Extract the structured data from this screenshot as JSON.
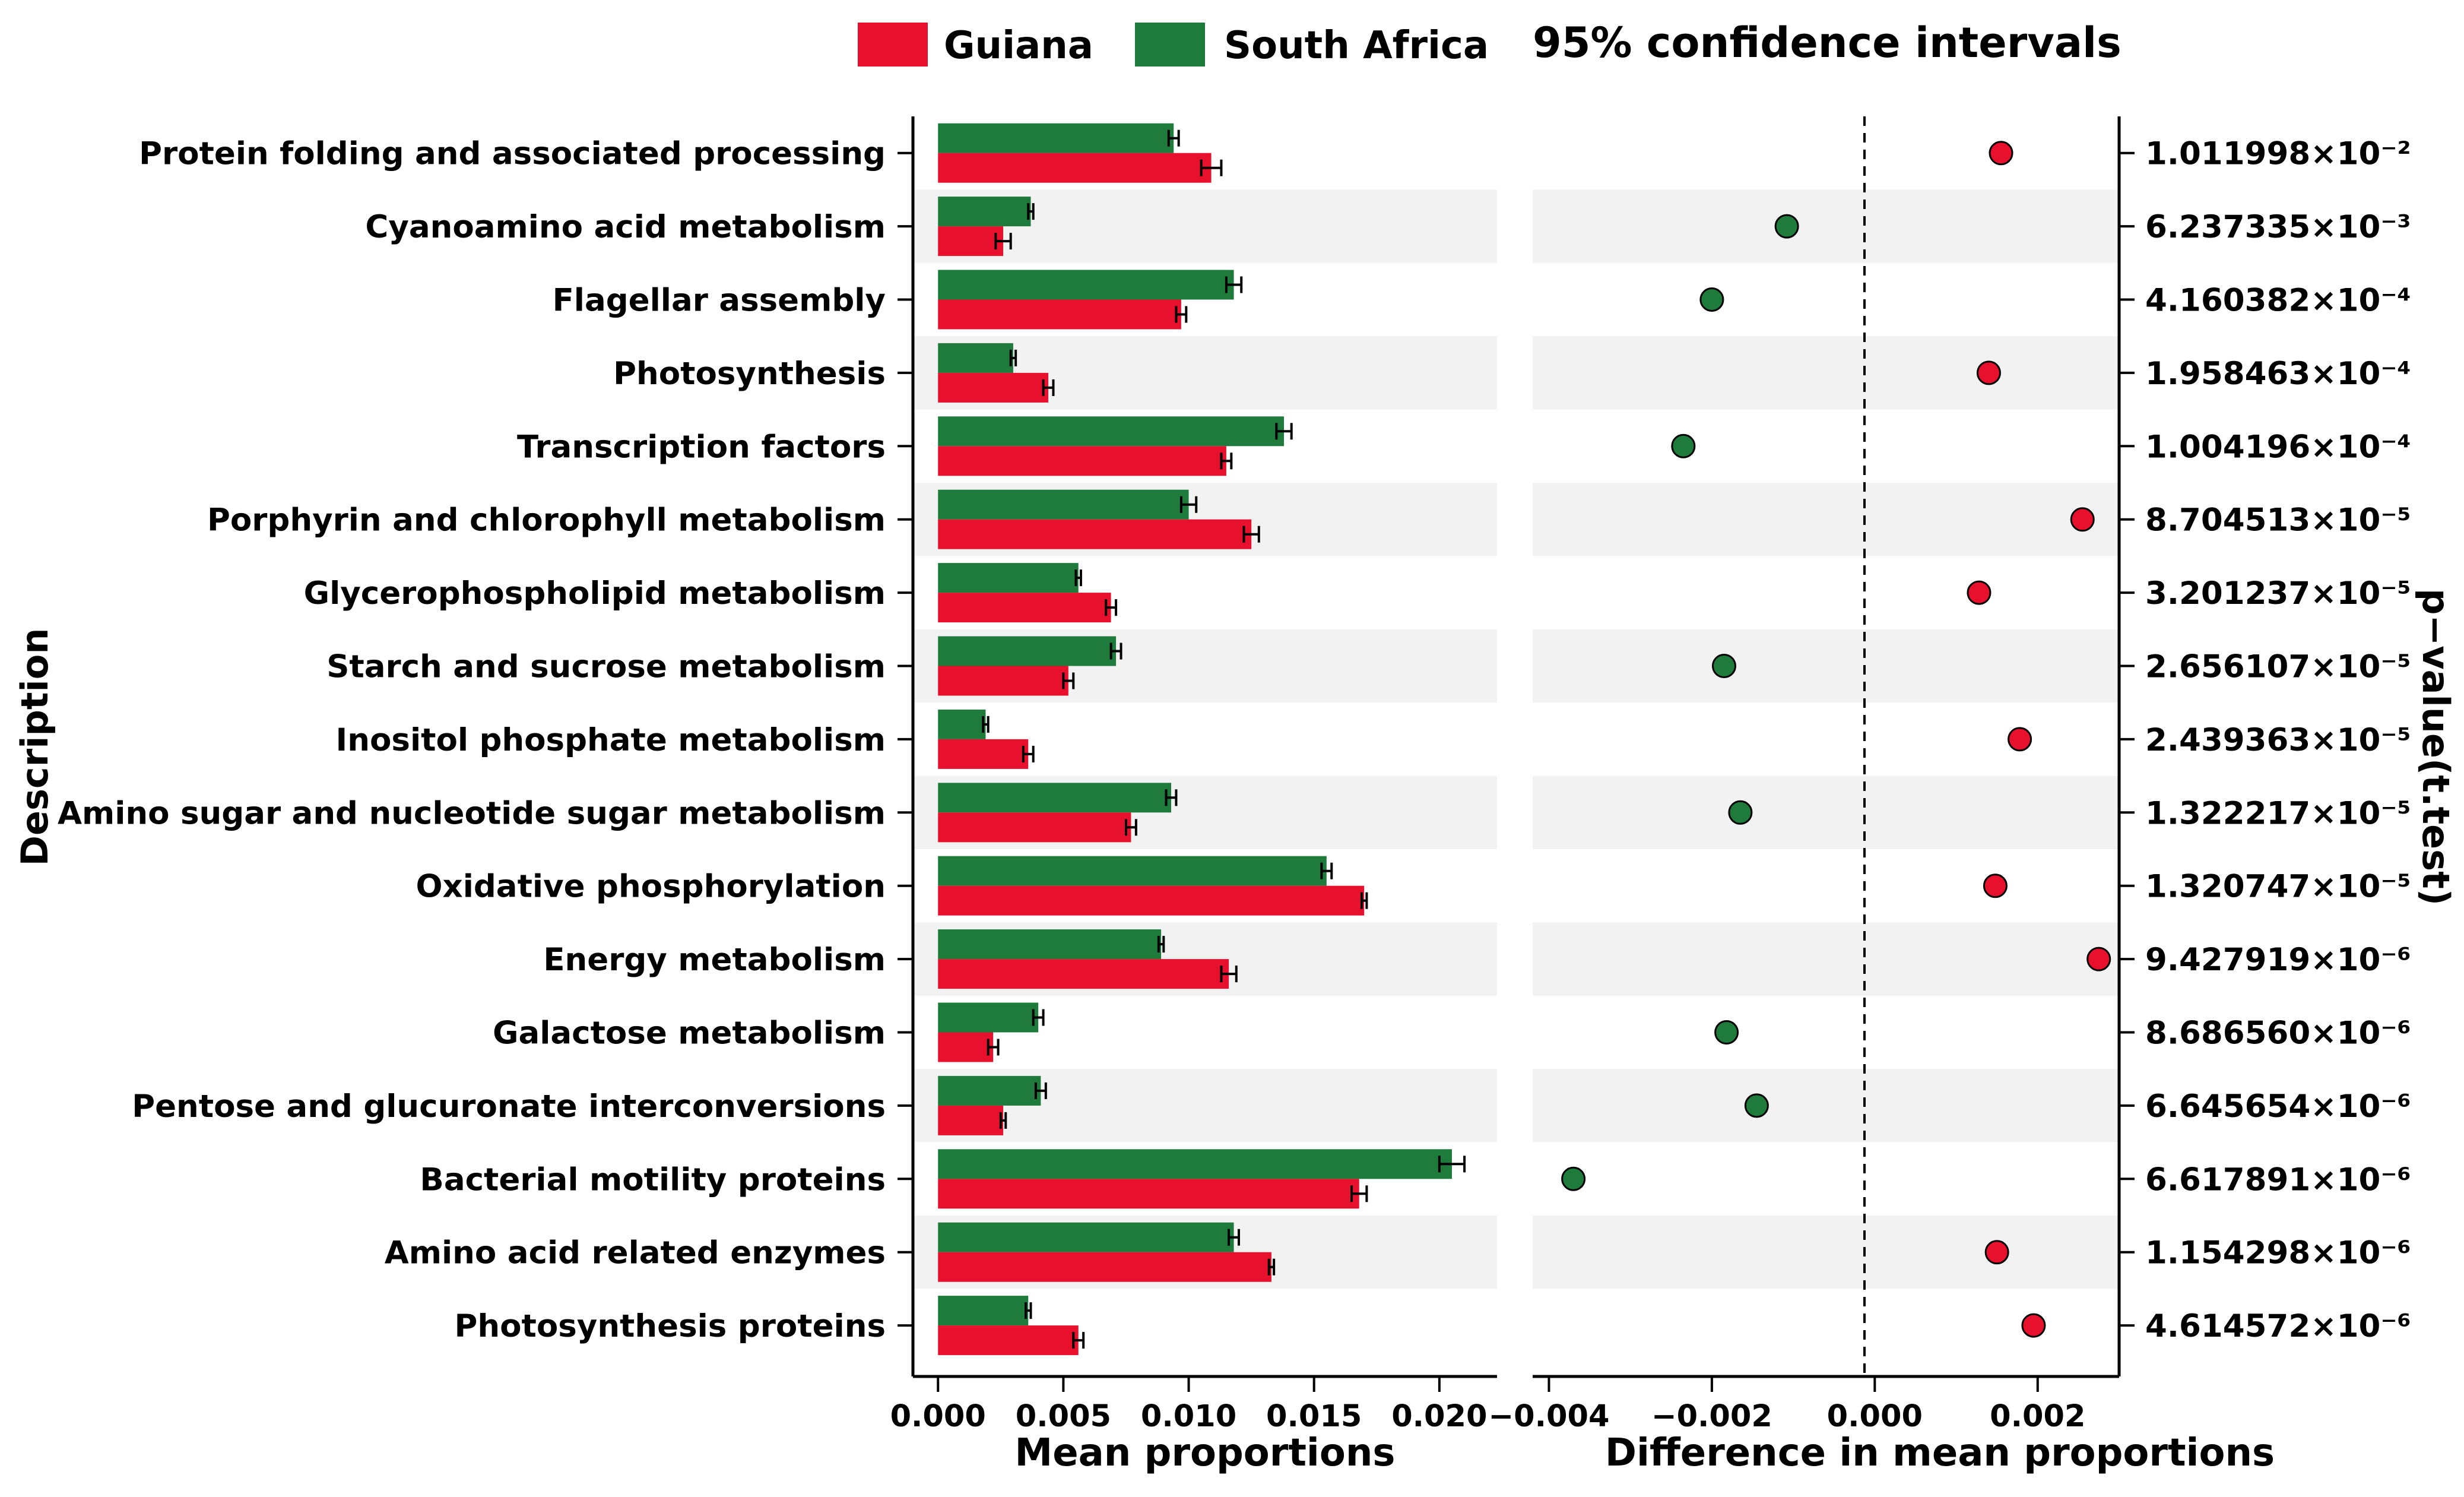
{
  "chart_data": {
    "type": "bar",
    "subtype": "extended-error-bar",
    "legend": {
      "entries": [
        {
          "name": "Guiana",
          "color": "#e8112d"
        },
        {
          "name": "South Africa",
          "color": "#1e7b3b"
        }
      ],
      "title": "95% confidence intervals",
      "placement": "top"
    },
    "colors": {
      "guiana": "#e8112d",
      "south_africa": "#1e7b3b",
      "stripe": "#f2f2f2"
    },
    "ylabel": "Description",
    "right_label": "p−value(t.test)",
    "categories": [
      "Protein folding and associated processing",
      "Cyanoamino acid metabolism",
      "Flagellar assembly",
      "Photosynthesis",
      "Transcription factors",
      "Porphyrin and chlorophyll metabolism",
      "Glycerophospholipid metabolism",
      "Starch and sucrose metabolism",
      "Inositol phosphate metabolism",
      "Amino sugar and nucleotide sugar metabolism",
      "Oxidative phosphorylation",
      "Energy metabolism",
      "Galactose metabolism",
      "Pentose and glucuronate interconversions",
      "Bacterial motility proteins",
      "Amino acid related enzymes",
      "Photosynthesis proteins"
    ],
    "mean_proportions": {
      "xlabel": "Mean proportions",
      "xlim": [
        -0.001,
        0.0223
      ],
      "ticks": [
        0.0,
        0.005,
        0.01,
        0.015,
        0.02
      ],
      "tick_labels": [
        "0.000",
        "0.005",
        "0.010",
        "0.015",
        "0.020"
      ],
      "series": [
        {
          "name": "South Africa",
          "values": [
            0.0094,
            0.0037,
            0.0118,
            0.003,
            0.0138,
            0.01,
            0.0056,
            0.0071,
            0.0019,
            0.0093,
            0.0155,
            0.0089,
            0.004,
            0.0041,
            0.0205,
            0.0118,
            0.0036
          ],
          "errors": [
            0.0002,
            0.0001,
            0.0003,
            0.0001,
            0.0003,
            0.0003,
            0.0001,
            0.0002,
            0.0001,
            0.0002,
            0.0002,
            0.0001,
            0.0002,
            0.0002,
            0.0005,
            0.0002,
            0.0001
          ]
        },
        {
          "name": "Guiana",
          "values": [
            0.0109,
            0.0026,
            0.0097,
            0.0044,
            0.0115,
            0.0125,
            0.0069,
            0.0052,
            0.0036,
            0.0077,
            0.017,
            0.0116,
            0.0022,
            0.0026,
            0.0168,
            0.0133,
            0.0056
          ],
          "errors": [
            0.0004,
            0.0003,
            0.0002,
            0.0002,
            0.0002,
            0.0003,
            0.0002,
            0.0002,
            0.0002,
            0.0002,
            0.0001,
            0.0003,
            0.0002,
            0.0001,
            0.0003,
            0.0001,
            0.0002
          ]
        }
      ]
    },
    "difference": {
      "xlabel": "Difference in mean proportions",
      "xlim": [
        -0.0042,
        0.003
      ],
      "ticks": [
        -0.004,
        -0.002,
        0.0,
        0.002
      ],
      "tick_labels": [
        "−0.004",
        "−0.002",
        "0.000",
        "0.002"
      ],
      "values": [
        0.00155,
        -0.00108,
        -0.002,
        0.0014,
        -0.00235,
        0.00255,
        0.00128,
        -0.00185,
        0.00178,
        -0.00165,
        0.00148,
        0.00275,
        -0.00182,
        -0.00145,
        -0.0037,
        0.0015,
        0.00195
      ],
      "enriched_in": [
        "Guiana",
        "South Africa",
        "South Africa",
        "Guiana",
        "South Africa",
        "Guiana",
        "Guiana",
        "South Africa",
        "Guiana",
        "South Africa",
        "Guiana",
        "Guiana",
        "South Africa",
        "South Africa",
        "South Africa",
        "Guiana",
        "Guiana"
      ]
    },
    "p_values": [
      "1.011998×10⁻²",
      "6.237335×10⁻³",
      "4.160382×10⁻⁴",
      "1.958463×10⁻⁴",
      "1.004196×10⁻⁴",
      "8.704513×10⁻⁵",
      "3.201237×10⁻⁵",
      "2.656107×10⁻⁵",
      "2.439363×10⁻⁵",
      "1.322217×10⁻⁵",
      "1.320747×10⁻⁵",
      "9.427919×10⁻⁶",
      "8.686560×10⁻⁶",
      "6.645654×10⁻⁶",
      "6.617891×10⁻⁶",
      "1.154298×10⁻⁶",
      "4.614572×10⁻⁶"
    ]
  }
}
